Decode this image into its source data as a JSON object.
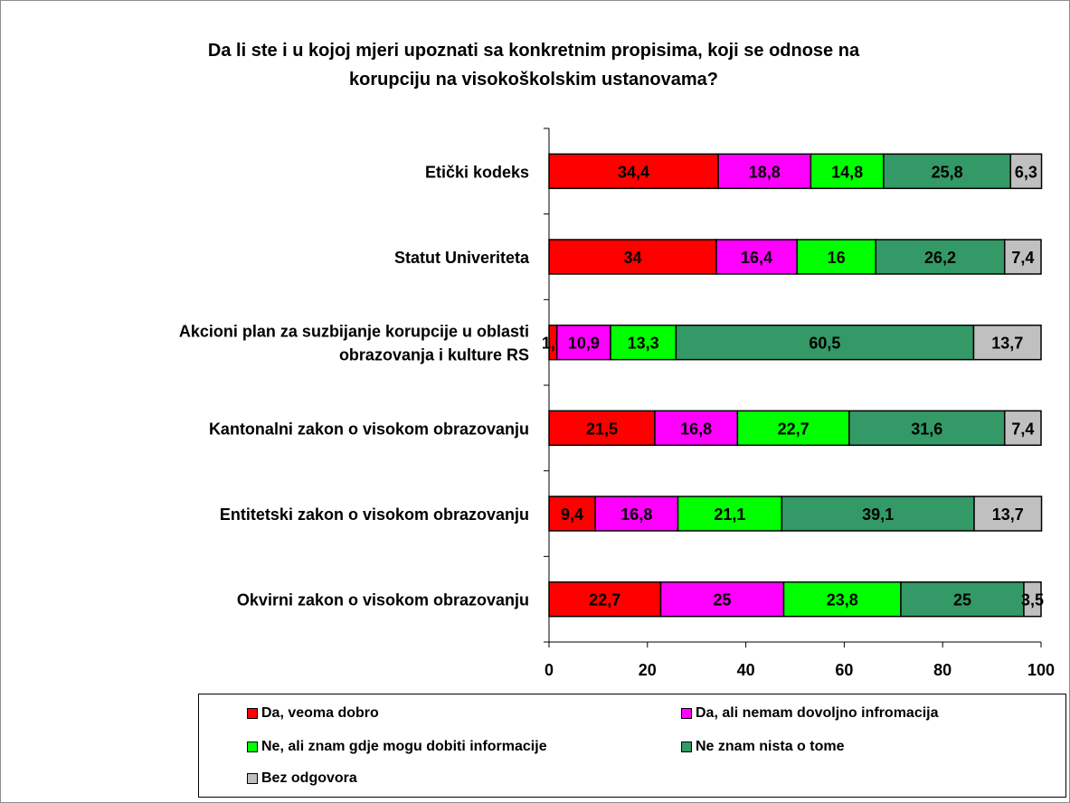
{
  "chart_data": {
    "type": "bar",
    "orientation": "horizontal",
    "stacked": true,
    "title_lines": [
      "Da li ste  i u kojoj mjeri upoznati sa konkretnim propisima, koji se odnose na",
      "korupciju na visokoškolskim ustanovama?"
    ],
    "categories": [
      [
        "Etički kodeks"
      ],
      [
        "Statut Univeriteta"
      ],
      [
        "Akcioni plan za suzbijanje korupcije u oblasti",
        "obrazovanja i kulture RS"
      ],
      [
        "Kantonalni zakon o visokom obrazovanju"
      ],
      [
        "Entitetski zakon o visokom obrazovanju"
      ],
      [
        "Okvirni zakon o visokom obrazovanju"
      ]
    ],
    "series": [
      {
        "name": "Da, veoma dobro",
        "color": "#ff0000",
        "values": [
          34.4,
          34,
          1.6,
          21.5,
          9.4,
          22.7
        ],
        "labels": [
          "34,4",
          "34",
          "1,6",
          "21,5",
          "9,4",
          "22,7"
        ]
      },
      {
        "name": "Da, ali nemam dovoljno infromacija",
        "color": "#ff00ff",
        "values": [
          18.8,
          16.4,
          10.9,
          16.8,
          16.8,
          25
        ],
        "labels": [
          "18,8",
          "16,4",
          "10,9",
          "16,8",
          "16,8",
          "25"
        ]
      },
      {
        "name": "Ne, ali znam gdje mogu dobiti informacije",
        "color": "#00ff00",
        "values": [
          14.8,
          16,
          13.3,
          22.7,
          21.1,
          23.8
        ],
        "labels": [
          "14,8",
          "16",
          "13,3",
          "22,7",
          "21,1",
          "23,8"
        ]
      },
      {
        "name": "Ne znam nista o tome",
        "color": "#339966",
        "values": [
          25.8,
          26.2,
          60.5,
          31.6,
          39.1,
          25
        ],
        "labels": [
          "25,8",
          "26,2",
          "60,5",
          "31,6",
          "39,1",
          "25"
        ]
      },
      {
        "name": "Bez odgovora",
        "color": "#c0c0c0",
        "values": [
          6.3,
          7.4,
          13.7,
          7.4,
          13.7,
          3.5
        ],
        "labels": [
          "6,3",
          "7,4",
          "13,7",
          "7,4",
          "13,7",
          "3,5"
        ]
      }
    ],
    "xlim": [
      0,
      100
    ],
    "xticks": [
      0,
      20,
      40,
      60,
      80,
      100
    ],
    "grid": false,
    "legend_position": "bottom"
  }
}
